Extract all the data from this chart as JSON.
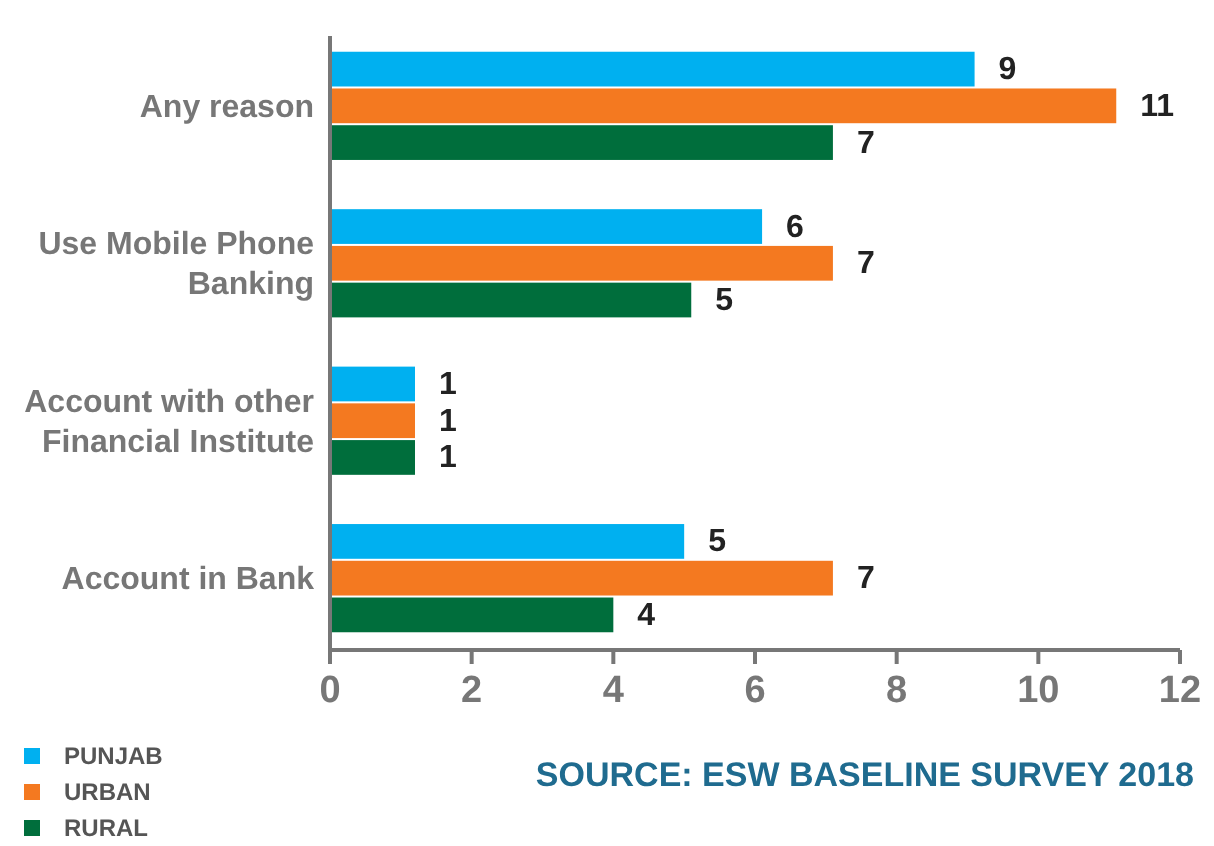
{
  "chart_data": {
    "type": "bar",
    "orientation": "horizontal",
    "categories": [
      "Any reason",
      "Use Mobile Phone Banking",
      "Account with other Financial Institute",
      "Account in Bank"
    ],
    "series": [
      {
        "name": "PUNJAB",
        "color": "#00b0f0",
        "values": [
          9.1,
          6.1,
          1.2,
          5.0
        ],
        "value_labels": [
          "9",
          "6",
          "1",
          "5"
        ]
      },
      {
        "name": "URBAN",
        "color": "#f47920",
        "values": [
          11.1,
          7.1,
          1.2,
          7.1
        ],
        "value_labels": [
          "11",
          "7",
          "1",
          "7"
        ]
      },
      {
        "name": "RURAL",
        "color": "#006e3c",
        "values": [
          7.1,
          5.1,
          1.2,
          4.0
        ],
        "value_labels": [
          "7",
          "5",
          "1",
          "4"
        ]
      }
    ],
    "xlim": [
      0,
      12
    ],
    "xticks": [
      0,
      2,
      4,
      6,
      8,
      10,
      12
    ],
    "grid": false,
    "legend": "bottom left",
    "annotations": [
      "SOURCE: ESW BASELINE SURVEY 2018"
    ]
  }
}
